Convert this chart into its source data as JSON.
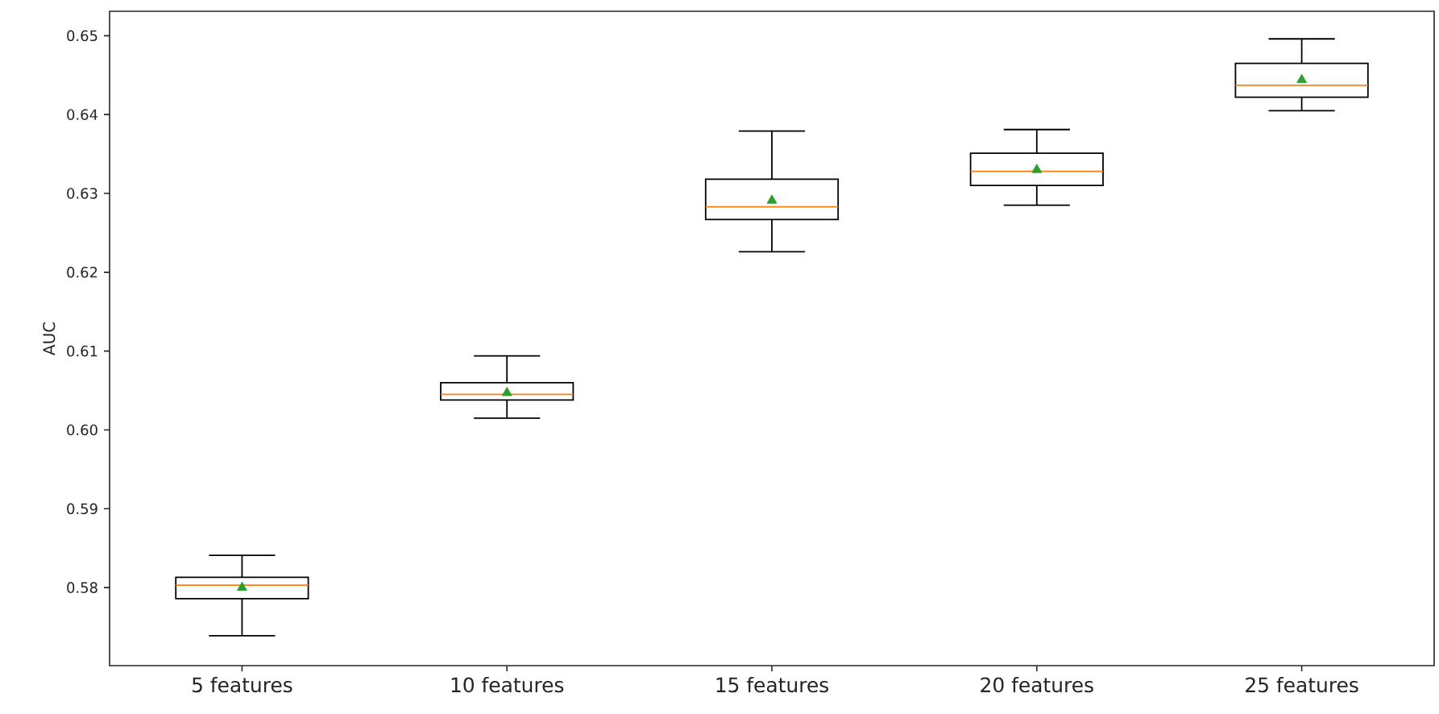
{
  "chart_data": {
    "type": "box",
    "ylabel": "AUC",
    "categories": [
      "5 features",
      "10 features",
      "15 features",
      "20 features",
      "25 features"
    ],
    "boxes": [
      {
        "low": 0.5739,
        "q1": 0.5786,
        "median": 0.5803,
        "q3": 0.5813,
        "high": 0.5841,
        "mean": 0.58
      },
      {
        "low": 0.6015,
        "q1": 0.6038,
        "median": 0.6045,
        "q3": 0.606,
        "high": 0.6094,
        "mean": 0.6047
      },
      {
        "low": 0.6226,
        "q1": 0.6267,
        "median": 0.6283,
        "q3": 0.6318,
        "high": 0.6379,
        "mean": 0.6291
      },
      {
        "low": 0.6285,
        "q1": 0.631,
        "median": 0.6328,
        "q3": 0.6351,
        "high": 0.6381,
        "mean": 0.633
      },
      {
        "low": 0.6405,
        "q1": 0.6422,
        "median": 0.6437,
        "q3": 0.6465,
        "high": 0.6496,
        "mean": 0.6444
      }
    ],
    "ylim": [
      0.5701,
      0.6531
    ],
    "yticks": [
      0.58,
      0.59,
      {
        "value": 0.6,
        "label": "0.60"
      },
      0.61,
      0.62,
      0.63,
      0.64,
      0.65
    ]
  }
}
